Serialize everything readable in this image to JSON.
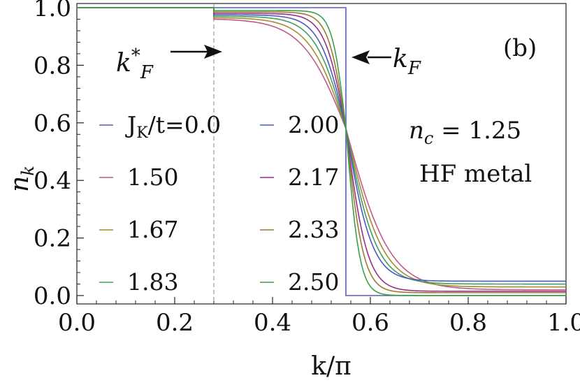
{
  "chart_data": {
    "type": "line",
    "panel_label": "(b)",
    "xlabel": "k/π",
    "ylabel_main": "n",
    "ylabel_sub": "k",
    "xlim": [
      0.0,
      1.0
    ],
    "ylim": [
      0.0,
      1.0
    ],
    "xticks": [
      "0.0",
      "0.2",
      "0.4",
      "0.6",
      "0.8",
      "1.0"
    ],
    "yticks": [
      "0.0",
      "0.2",
      "0.4",
      "0.6",
      "0.8",
      "1.0"
    ],
    "grid": false,
    "legend_placement": "left-center",
    "k_F": 0.55,
    "k_F_star": 0.28,
    "crossing_point": [
      0.55,
      0.58
    ],
    "annotations": {
      "kF_label": "k",
      "kF_sub": "F",
      "kFstar_label": "k",
      "kFstar_sup": "*",
      "kFstar_sub": "F",
      "nc_label": "n",
      "nc_sub": "c",
      "nc_value": " = 1.25",
      "phase_label": "HF metal"
    },
    "series": [
      {
        "name": "J",
        "name_sub": "K",
        "name_rest": "/t=0.0",
        "J": 0.0,
        "color": "#5b5bbf",
        "x": [
          0.0,
          0.55,
          0.55,
          1.0
        ],
        "y": [
          1.0,
          1.0,
          0.0,
          0.0
        ]
      },
      {
        "name": "1.50",
        "J": 1.5,
        "color": "#c05a8a",
        "y_left": 0.96,
        "y_inf": 0.02,
        "width": 0.045
      },
      {
        "name": "1.67",
        "J": 1.67,
        "color": "#a88a2e",
        "y_left": 0.965,
        "y_inf": 0.03,
        "width": 0.038
      },
      {
        "name": "1.83",
        "J": 1.83,
        "color": "#3f9f5f",
        "y_left": 0.97,
        "y_inf": 0.04,
        "width": 0.032
      },
      {
        "name": "2.00",
        "J": 2.0,
        "color": "#4a5bbf",
        "y_left": 0.975,
        "y_inf": 0.05,
        "width": 0.027
      },
      {
        "name": "2.17",
        "J": 2.17,
        "color": "#9a2f8a",
        "y_left": 0.98,
        "y_inf": 0.015,
        "width": 0.022
      },
      {
        "name": "2.33",
        "J": 2.33,
        "color": "#9a7a2e",
        "y_left": 0.985,
        "y_inf": 0.01,
        "width": 0.018
      },
      {
        "name": "2.50",
        "J": 2.5,
        "color": "#3aa04a",
        "y_left": 0.99,
        "y_inf": 0.0,
        "width": 0.014
      }
    ]
  }
}
